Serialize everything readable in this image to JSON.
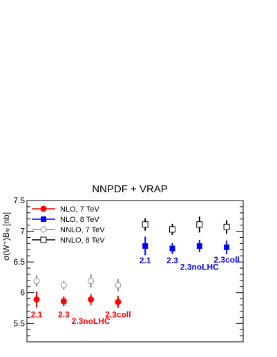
{
  "chart_data": {
    "type": "scatter",
    "title": "NNPDF + VRAP",
    "xlabel": "",
    "ylabel": "σ(W⁺)Bₗᵥ [nb]",
    "ylim": [
      5.2,
      7.5
    ],
    "yticks": [
      "5.5",
      "6",
      "6.5",
      "7",
      "7.5"
    ],
    "grid": false,
    "legend_position": "top-left",
    "series": [
      {
        "name": "NLO, 7 TeV",
        "color": "#ff0000",
        "marker": "filled-circle",
        "points": [
          {
            "x": 1,
            "y": 5.89,
            "err": 0.13
          },
          {
            "x": 2,
            "y": 5.86,
            "err": 0.08
          },
          {
            "x": 3,
            "y": 5.89,
            "err": 0.09
          },
          {
            "x": 4,
            "y": 5.85,
            "err": 0.1
          }
        ]
      },
      {
        "name": "NLO, 8 TeV",
        "color": "#0000ff",
        "marker": "filled-square",
        "points": [
          {
            "x": 5,
            "y": 6.76,
            "err": 0.15
          },
          {
            "x": 6,
            "y": 6.72,
            "err": 0.09
          },
          {
            "x": 7,
            "y": 6.76,
            "err": 0.1
          },
          {
            "x": 8,
            "y": 6.74,
            "err": 0.11
          }
        ]
      },
      {
        "name": "NNLO, 7 TeV",
        "color": "#888888",
        "marker": "open-circle",
        "points": [
          {
            "x": 1,
            "y": 6.19,
            "err": 0.09
          },
          {
            "x": 2,
            "y": 6.12,
            "err": 0.07
          },
          {
            "x": 3,
            "y": 6.19,
            "err": 0.11
          },
          {
            "x": 4,
            "y": 6.12,
            "err": 0.1
          }
        ]
      },
      {
        "name": "NNLO, 8 TeV",
        "color": "#000000",
        "marker": "open-square",
        "points": [
          {
            "x": 5,
            "y": 7.11,
            "err": 0.1
          },
          {
            "x": 6,
            "y": 7.03,
            "err": 0.09
          },
          {
            "x": 7,
            "y": 7.11,
            "err": 0.13
          },
          {
            "x": 8,
            "y": 7.07,
            "err": 0.11
          }
        ]
      }
    ],
    "annotations": [
      {
        "text": "2.1",
        "color": "#ff0000",
        "x": 1,
        "y": 5.6
      },
      {
        "text": "2.3",
        "color": "#ff0000",
        "x": 2,
        "y": 5.6
      },
      {
        "text": "2.3noLHC",
        "color": "#ff0000",
        "x": 3,
        "y": 5.49
      },
      {
        "text": "2.3coll",
        "color": "#ff0000",
        "x": 4,
        "y": 5.6
      },
      {
        "text": "2.1",
        "color": "#0000ff",
        "x": 5,
        "y": 6.48
      },
      {
        "text": "2.3",
        "color": "#0000ff",
        "x": 6,
        "y": 6.48
      },
      {
        "text": "2.3noLHC",
        "color": "#0000ff",
        "x": 7,
        "y": 6.37
      },
      {
        "text": "2.3coll",
        "color": "#0000ff",
        "x": 8,
        "y": 6.49
      }
    ]
  }
}
